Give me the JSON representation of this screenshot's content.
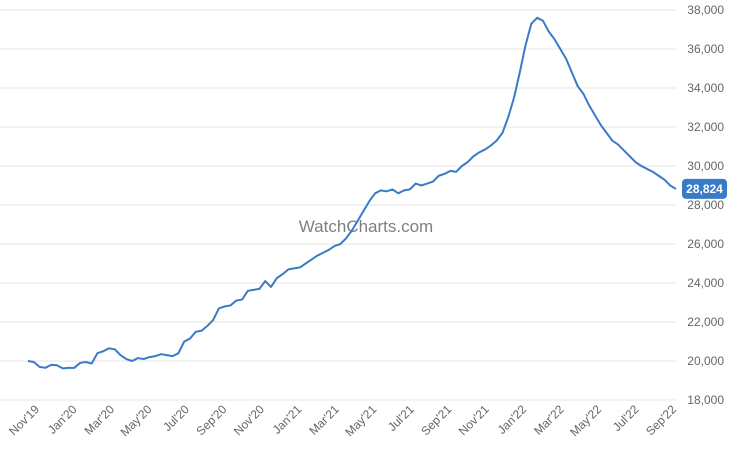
{
  "watermark": "WatchCharts.com",
  "colors": {
    "line": "#3a7bc8",
    "badge": "#3a7bc8",
    "grid": "#e6e6e6",
    "tick_text": "#666666"
  },
  "chart_data": {
    "type": "line",
    "title": "",
    "xlabel": "",
    "ylabel": "",
    "ylim": [
      18000,
      38000
    ],
    "y_ticks": [
      "18,000",
      "20,000",
      "22,000",
      "24,000",
      "26,000",
      "28,000",
      "30,000",
      "32,000",
      "34,000",
      "36,000",
      "38,000"
    ],
    "y_tick_values": [
      18000,
      20000,
      22000,
      24000,
      26000,
      28000,
      30000,
      32000,
      34000,
      36000,
      38000
    ],
    "x_ticks": [
      "Nov'19",
      "Jan'20",
      "Mar'20",
      "May'20",
      "Jul'20",
      "Sep'20",
      "Nov'20",
      "Jan'21",
      "Mar'21",
      "May'21",
      "Jul'21",
      "Sep'21",
      "Nov'21",
      "Jan'22",
      "Mar'22",
      "May'22",
      "Jul'22",
      "Sep'22"
    ],
    "grid": true,
    "legend": "none",
    "current_value_label": "28,824",
    "current_value": 28824,
    "series": [
      {
        "values": [
          20000,
          19950,
          19700,
          19650,
          19800,
          19780,
          19620,
          19650,
          19650,
          19900,
          19950,
          19870,
          20400,
          20500,
          20650,
          20600,
          20300,
          20100,
          20000,
          20150,
          20100,
          20200,
          20250,
          20350,
          20300,
          20250,
          20400,
          21000,
          21150,
          21500,
          21550,
          21800,
          22100,
          22700,
          22800,
          22850,
          23100,
          23150,
          23600,
          23650,
          23700,
          24100,
          23800,
          24250,
          24450,
          24700,
          24750,
          24800,
          25000,
          25200,
          25400,
          25550,
          25700,
          25900,
          26000,
          26300,
          26700,
          27200,
          27700,
          28200,
          28600,
          28750,
          28700,
          28800,
          28600,
          28750,
          28800,
          29100,
          29000,
          29100,
          29200,
          29500,
          29600,
          29750,
          29700,
          30000,
          30200,
          30500,
          30700,
          30850,
          31050,
          31300,
          31700,
          32500,
          33500,
          34800,
          36200,
          37300,
          37600,
          37450,
          36900,
          36500,
          36000,
          35500,
          34800,
          34100,
          33700,
          33100,
          32600,
          32100,
          31700,
          31300,
          31100,
          30800,
          30500,
          30200,
          30000,
          29850,
          29700,
          29500,
          29300,
          29000,
          28824
        ]
      }
    ]
  }
}
